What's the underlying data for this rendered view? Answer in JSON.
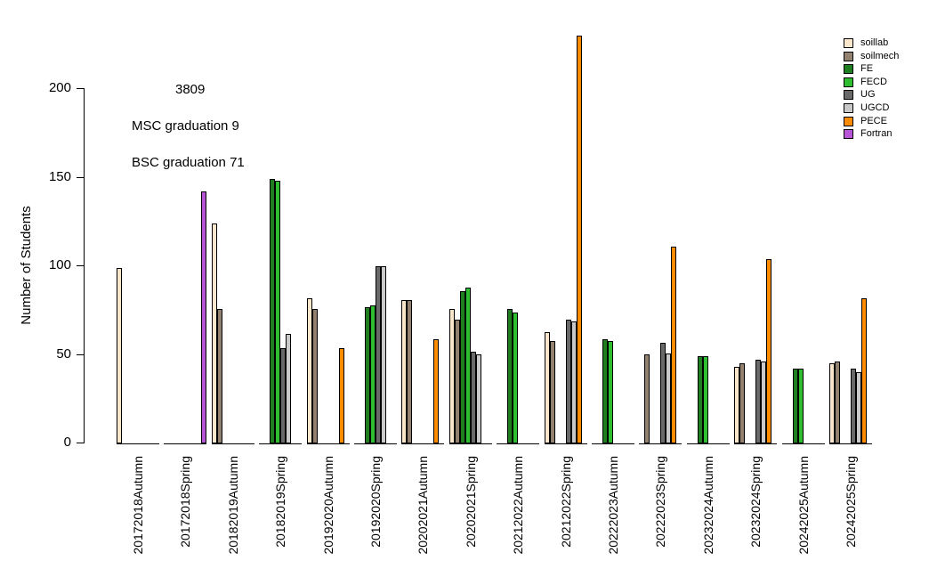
{
  "chart_data": {
    "type": "bar",
    "title": "",
    "xlabel": "",
    "ylabel": "Number of Students",
    "ylim": [
      0,
      230
    ],
    "yticks": [
      0,
      50,
      100,
      150,
      200
    ],
    "grid": false,
    "legend_position": "top-right",
    "annotations": [
      {
        "text": "3809"
      },
      {
        "text": "MSC graduation 9"
      },
      {
        "text": "BSC graduation 71"
      }
    ],
    "categories": [
      "20172018Autumn",
      "20172018Spring",
      "20182019Autumn",
      "20182019Spring",
      "20192020Autumn",
      "20192020Spring",
      "20202021Autumn",
      "20202021Spring",
      "20212022Autumn",
      "20212022Spring",
      "20222023Autumn",
      "20222023Spring",
      "20232024Autumn",
      "20232024Spring",
      "20242025Autumn",
      "20242025Spring"
    ],
    "series": [
      {
        "name": "soillab",
        "color": "#FAE6CB",
        "values": [
          99,
          0,
          124,
          0,
          82,
          0,
          81,
          76,
          0,
          63,
          0,
          0,
          0,
          43,
          0,
          45
        ]
      },
      {
        "name": "soilmech",
        "color": "#93816F",
        "values": [
          0,
          0,
          76,
          0,
          76,
          0,
          81,
          70,
          0,
          58,
          0,
          50,
          0,
          45,
          0,
          46
        ]
      },
      {
        "name": "FE",
        "color": "#1F7E1F",
        "values": [
          0,
          0,
          0,
          149,
          0,
          77,
          0,
          86,
          76,
          0,
          59,
          0,
          49,
          0,
          42,
          0
        ]
      },
      {
        "name": "FECD",
        "color": "#2FBE2F",
        "values": [
          0,
          0,
          0,
          148,
          0,
          78,
          0,
          88,
          74,
          0,
          58,
          0,
          49,
          0,
          42,
          0
        ]
      },
      {
        "name": "UG",
        "color": "#696969",
        "values": [
          0,
          0,
          0,
          54,
          0,
          100,
          0,
          52,
          0,
          70,
          0,
          57,
          0,
          47,
          0,
          42
        ]
      },
      {
        "name": "UGCD",
        "color": "#C9C9C9",
        "values": [
          0,
          0,
          0,
          62,
          0,
          100,
          0,
          50,
          0,
          69,
          0,
          51,
          0,
          46,
          0,
          40
        ]
      },
      {
        "name": "PECE",
        "color": "#FF8C00",
        "values": [
          0,
          0,
          0,
          0,
          54,
          0,
          59,
          0,
          0,
          230,
          0,
          111,
          0,
          104,
          0,
          82
        ]
      },
      {
        "name": "Fortran",
        "color": "#B855D6",
        "values": [
          0,
          142,
          0,
          0,
          0,
          0,
          0,
          0,
          0,
          0,
          0,
          0,
          0,
          0,
          0,
          0
        ]
      }
    ]
  }
}
